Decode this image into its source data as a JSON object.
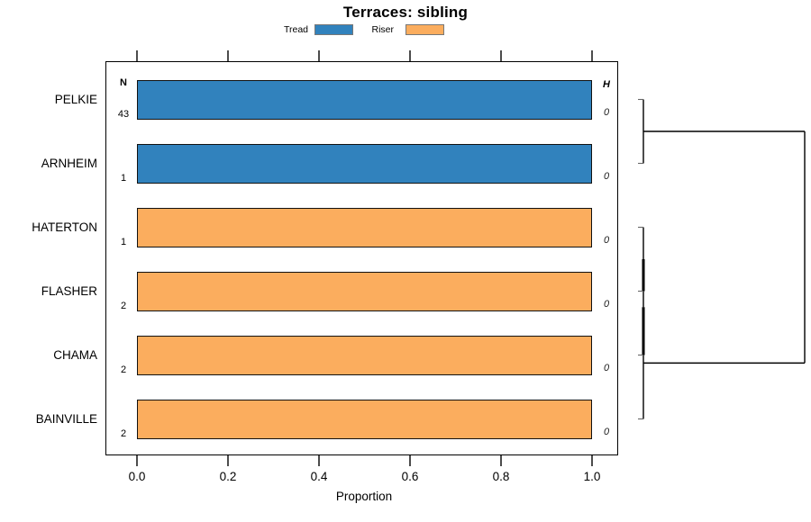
{
  "chart_data": {
    "type": "bar",
    "orientation": "horizontal",
    "title": "Terraces: sibling",
    "xlabel": "Proportion",
    "xlim": [
      0.0,
      1.0
    ],
    "x_ticks": [
      0.0,
      0.2,
      0.4,
      0.6,
      0.8,
      1.0
    ],
    "x_tick_labels": [
      "0.0",
      "0.2",
      "0.4",
      "0.6",
      "0.8",
      "1.0"
    ],
    "grid": false,
    "legend_position": "top",
    "categories": [
      "PELKIE",
      "ARNHEIM",
      "HATERTON",
      "FLASHER",
      "CHAMA",
      "BAINVILLE"
    ],
    "series": [
      {
        "name": "Tread",
        "color": "#3182bd",
        "values": [
          1.0,
          1.0,
          0.0,
          0.0,
          0.0,
          0.0
        ]
      },
      {
        "name": "Riser",
        "color": "#fbad5e",
        "values": [
          0.0,
          0.0,
          1.0,
          1.0,
          1.0,
          1.0
        ]
      }
    ],
    "legend": [
      {
        "label": "Tread",
        "color": "#3182bd"
      },
      {
        "label": "Riser",
        "color": "#fbad5e"
      }
    ],
    "n_column": {
      "header": "N",
      "values": [
        "43",
        "1",
        "1",
        "2",
        "2",
        "2"
      ]
    },
    "h_column": {
      "header": "H",
      "values": [
        "0",
        "0",
        "0",
        "0",
        "0",
        "0"
      ]
    },
    "dendrogram": {
      "description": "right-margin dendrogram, all merges at height 0",
      "clusters": [
        [
          0,
          1
        ],
        [
          2,
          3,
          4,
          5
        ]
      ]
    }
  }
}
